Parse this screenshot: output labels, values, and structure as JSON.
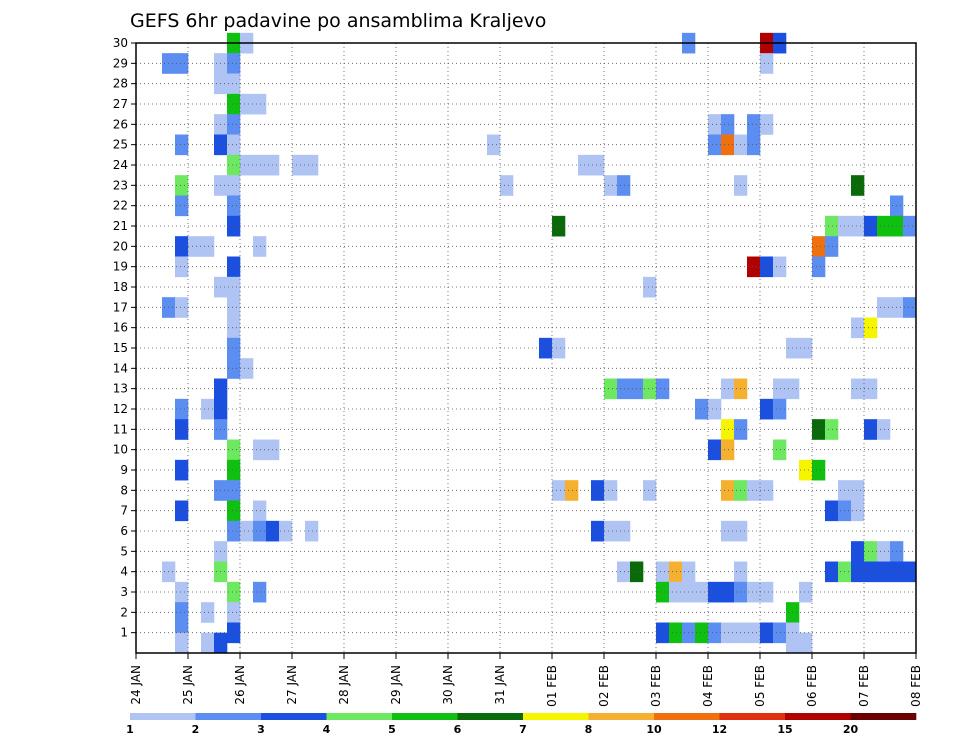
{
  "chart_data": {
    "type": "heatmap",
    "title": "GEFS 6hr padavine po ansamblima Kraljevo",
    "xlabel": "",
    "ylabel": "",
    "x_tick_labels": [
      "24 JAN",
      "25 JAN",
      "26 JAN",
      "27 JAN",
      "28 JAN",
      "29 JAN",
      "30 JAN",
      "31 JAN",
      "01 FEB",
      "02 FEB",
      "03 FEB",
      "04 FEB",
      "05 FEB",
      "06 FEB",
      "07 FEB",
      "08 FEB"
    ],
    "x_unit": "6-hour steps from 24 JAN 00Z (4 steps per day)",
    "x_range": [
      0,
      60
    ],
    "y_tick_labels": [
      1,
      2,
      3,
      4,
      5,
      6,
      7,
      8,
      9,
      10,
      11,
      12,
      13,
      14,
      15,
      16,
      17,
      18,
      19,
      20,
      21,
      22,
      23,
      24,
      25,
      26,
      27,
      28,
      29,
      30
    ],
    "y_range": [
      0,
      30
    ],
    "grid": "dotted",
    "legend": {
      "position": "bottom",
      "thresholds": [
        "1",
        "2",
        "3",
        "4",
        "5",
        "6",
        "7",
        "8",
        "10",
        "12",
        "15",
        "20"
      ],
      "colors": [
        "#b0c4f4",
        "#5c8df0",
        "#1a4fe0",
        "#6ee860",
        "#10c010",
        "#0a6a0a",
        "#f5f500",
        "#f5b030",
        "#f07010",
        "#e03010",
        "#b00000",
        "#6a0000"
      ]
    },
    "level_colors": {
      "1": "#b0c4f4",
      "2": "#5c8df0",
      "3": "#1a4fe0",
      "4": "#6ee860",
      "5": "#10c010",
      "6": "#0a6a0a",
      "7": "#f5f500",
      "8": "#f5b030",
      "10": "#f07010",
      "12": "#e03010",
      "15": "#b00000",
      "20": "#6a0000"
    },
    "cells": [
      [
        "7.0",
        "30",
        4,
        5
      ],
      [
        "7.0",
        "27",
        4,
        5
      ],
      [
        "7.0",
        "24",
        4,
        4
      ],
      [
        "7.0",
        "21",
        4,
        3
      ],
      [
        "7.0",
        "10",
        4,
        4
      ],
      [
        "7.0",
        "9",
        4,
        5
      ],
      [
        "7.0",
        "7",
        4,
        5
      ],
      [
        "7.0",
        "3",
        4,
        4
      ],
      [
        "7.0",
        "1",
        4,
        3
      ]
    ],
    "cells_flat": [
      [
        30,
        7,
        "5"
      ],
      [
        30,
        8,
        "1"
      ],
      [
        30,
        42,
        "2"
      ],
      [
        30,
        48,
        "15"
      ],
      [
        30,
        49,
        "3"
      ],
      [
        29,
        2,
        "2"
      ],
      [
        29,
        3,
        "2"
      ],
      [
        29,
        6,
        "1"
      ],
      [
        29,
        7,
        "2"
      ],
      [
        29,
        48,
        "1"
      ],
      [
        28,
        6,
        "1"
      ],
      [
        28,
        7,
        "1"
      ],
      [
        27,
        7,
        "5"
      ],
      [
        27,
        8,
        "1"
      ],
      [
        27,
        9,
        "1"
      ],
      [
        26,
        6,
        "1"
      ],
      [
        26,
        7,
        "2"
      ],
      [
        26,
        44,
        "1"
      ],
      [
        26,
        45,
        "2"
      ],
      [
        26,
        47,
        "2"
      ],
      [
        26,
        48,
        "1"
      ],
      [
        25,
        3,
        "2"
      ],
      [
        25,
        6,
        "3"
      ],
      [
        25,
        7,
        "1"
      ],
      [
        25,
        27,
        "1"
      ],
      [
        25,
        44,
        "2"
      ],
      [
        25,
        45,
        "10"
      ],
      [
        25,
        46,
        "1"
      ],
      [
        25,
        47,
        "2"
      ],
      [
        24,
        7,
        "4"
      ],
      [
        24,
        8,
        "1"
      ],
      [
        24,
        9,
        "1"
      ],
      [
        24,
        10,
        "1"
      ],
      [
        24,
        12,
        "1"
      ],
      [
        24,
        13,
        "1"
      ],
      [
        24,
        34,
        "1"
      ],
      [
        24,
        35,
        "1"
      ],
      [
        23,
        3,
        "4"
      ],
      [
        23,
        6,
        "1"
      ],
      [
        23,
        7,
        "1"
      ],
      [
        23,
        28,
        "1"
      ],
      [
        23,
        36,
        "1"
      ],
      [
        23,
        37,
        "2"
      ],
      [
        23,
        46,
        "1"
      ],
      [
        23,
        55,
        "6"
      ],
      [
        22,
        3,
        "2"
      ],
      [
        22,
        7,
        "2"
      ],
      [
        22,
        58,
        "2"
      ],
      [
        21,
        7,
        "3"
      ],
      [
        21,
        32,
        "6"
      ],
      [
        21,
        53,
        "4"
      ],
      [
        21,
        54,
        "1"
      ],
      [
        21,
        55,
        "1"
      ],
      [
        21,
        56,
        "3"
      ],
      [
        21,
        57,
        "5"
      ],
      [
        21,
        58,
        "5"
      ],
      [
        21,
        59,
        "2"
      ],
      [
        20,
        3,
        "3"
      ],
      [
        20,
        4,
        "1"
      ],
      [
        20,
        5,
        "1"
      ],
      [
        20,
        9,
        "1"
      ],
      [
        20,
        52,
        "10"
      ],
      [
        20,
        53,
        "2"
      ],
      [
        19,
        3,
        "1"
      ],
      [
        19,
        7,
        "3"
      ],
      [
        19,
        47,
        "15"
      ],
      [
        19,
        48,
        "3"
      ],
      [
        19,
        49,
        "1"
      ],
      [
        19,
        52,
        "2"
      ],
      [
        18,
        6,
        "1"
      ],
      [
        18,
        7,
        "1"
      ],
      [
        18,
        39,
        "1"
      ],
      [
        17,
        2,
        "2"
      ],
      [
        17,
        3,
        "1"
      ],
      [
        17,
        7,
        "1"
      ],
      [
        17,
        57,
        "1"
      ],
      [
        17,
        58,
        "1"
      ],
      [
        17,
        59,
        "2"
      ],
      [
        16,
        7,
        "1"
      ],
      [
        16,
        55,
        "1"
      ],
      [
        16,
        56,
        "7"
      ],
      [
        15,
        7,
        "2"
      ],
      [
        15,
        31,
        "3"
      ],
      [
        15,
        32,
        "1"
      ],
      [
        15,
        50,
        "1"
      ],
      [
        15,
        51,
        "1"
      ],
      [
        14,
        7,
        "2"
      ],
      [
        14,
        8,
        "1"
      ],
      [
        13,
        6,
        "3"
      ],
      [
        13,
        36,
        "4"
      ],
      [
        13,
        37,
        "2"
      ],
      [
        13,
        38,
        "2"
      ],
      [
        13,
        39,
        "4"
      ],
      [
        13,
        40,
        "2"
      ],
      [
        13,
        45,
        "1"
      ],
      [
        13,
        46,
        "8"
      ],
      [
        13,
        49,
        "1"
      ],
      [
        13,
        50,
        "1"
      ],
      [
        13,
        55,
        "1"
      ],
      [
        13,
        56,
        "1"
      ],
      [
        12,
        3,
        "2"
      ],
      [
        12,
        5,
        "1"
      ],
      [
        12,
        6,
        "3"
      ],
      [
        12,
        43,
        "2"
      ],
      [
        12,
        44,
        "1"
      ],
      [
        12,
        48,
        "3"
      ],
      [
        12,
        49,
        "2"
      ],
      [
        11,
        3,
        "3"
      ],
      [
        11,
        6,
        "2"
      ],
      [
        11,
        45,
        "7"
      ],
      [
        11,
        46,
        "2"
      ],
      [
        11,
        52,
        "6"
      ],
      [
        11,
        53,
        "4"
      ],
      [
        11,
        56,
        "3"
      ],
      [
        11,
        57,
        "1"
      ],
      [
        10,
        7,
        "4"
      ],
      [
        10,
        9,
        "1"
      ],
      [
        10,
        10,
        "1"
      ],
      [
        10,
        44,
        "3"
      ],
      [
        10,
        45,
        "8"
      ],
      [
        10,
        49,
        "4"
      ],
      [
        9,
        3,
        "3"
      ],
      [
        9,
        7,
        "5"
      ],
      [
        9,
        51,
        "7"
      ],
      [
        9,
        52,
        "5"
      ],
      [
        8,
        6,
        "2"
      ],
      [
        8,
        7,
        "2"
      ],
      [
        8,
        32,
        "1"
      ],
      [
        8,
        33,
        "8"
      ],
      [
        8,
        35,
        "3"
      ],
      [
        8,
        36,
        "1"
      ],
      [
        8,
        39,
        "1"
      ],
      [
        8,
        45,
        "8"
      ],
      [
        8,
        46,
        "4"
      ],
      [
        8,
        47,
        "1"
      ],
      [
        8,
        48,
        "1"
      ],
      [
        8,
        54,
        "1"
      ],
      [
        8,
        55,
        "1"
      ],
      [
        7,
        3,
        "3"
      ],
      [
        7,
        7,
        "5"
      ],
      [
        7,
        9,
        "1"
      ],
      [
        7,
        53,
        "3"
      ],
      [
        7,
        54,
        "2"
      ],
      [
        7,
        55,
        "1"
      ],
      [
        6,
        7,
        "2"
      ],
      [
        6,
        8,
        "1"
      ],
      [
        6,
        9,
        "2"
      ],
      [
        6,
        10,
        "3"
      ],
      [
        6,
        11,
        "1"
      ],
      [
        6,
        13,
        "1"
      ],
      [
        6,
        35,
        "3"
      ],
      [
        6,
        36,
        "1"
      ],
      [
        6,
        37,
        "1"
      ],
      [
        6,
        45,
        "1"
      ],
      [
        6,
        46,
        "1"
      ],
      [
        5,
        6,
        "1"
      ],
      [
        5,
        55,
        "3"
      ],
      [
        5,
        56,
        "4"
      ],
      [
        5,
        57,
        "1"
      ],
      [
        5,
        58,
        "2"
      ],
      [
        4,
        2,
        "1"
      ],
      [
        4,
        6,
        "4"
      ],
      [
        4,
        37,
        "1"
      ],
      [
        4,
        38,
        "6"
      ],
      [
        4,
        40,
        "1"
      ],
      [
        4,
        41,
        "8"
      ],
      [
        4,
        42,
        "1"
      ],
      [
        4,
        46,
        "1"
      ],
      [
        4,
        53,
        "3"
      ],
      [
        4,
        54,
        "4"
      ],
      [
        4,
        55,
        "3"
      ],
      [
        4,
        56,
        "3"
      ],
      [
        4,
        57,
        "3"
      ],
      [
        4,
        58,
        "3"
      ],
      [
        4,
        59,
        "3"
      ],
      [
        3,
        3,
        "1"
      ],
      [
        3,
        7,
        "4"
      ],
      [
        3,
        9,
        "2"
      ],
      [
        3,
        40,
        "5"
      ],
      [
        3,
        41,
        "1"
      ],
      [
        3,
        42,
        "1"
      ],
      [
        3,
        43,
        "1"
      ],
      [
        3,
        44,
        "3"
      ],
      [
        3,
        45,
        "3"
      ],
      [
        3,
        46,
        "2"
      ],
      [
        3,
        47,
        "1"
      ],
      [
        3,
        48,
        "1"
      ],
      [
        3,
        51,
        "1"
      ],
      [
        2,
        3,
        "2"
      ],
      [
        2,
        5,
        "1"
      ],
      [
        2,
        7,
        "1"
      ],
      [
        2,
        50,
        "5"
      ],
      [
        1,
        3,
        "2"
      ],
      [
        1,
        7,
        "3"
      ],
      [
        1,
        40,
        "3"
      ],
      [
        1,
        41,
        "5"
      ],
      [
        1,
        42,
        "2"
      ],
      [
        1,
        43,
        "5"
      ],
      [
        1,
        44,
        "2"
      ],
      [
        1,
        45,
        "1"
      ],
      [
        1,
        46,
        "1"
      ],
      [
        1,
        47,
        "1"
      ],
      [
        1,
        48,
        "3"
      ],
      [
        1,
        49,
        "2"
      ],
      [
        1,
        50,
        "1"
      ],
      [
        0.5,
        3,
        "1"
      ],
      [
        0.5,
        5,
        "1"
      ],
      [
        0.5,
        6,
        "3"
      ],
      [
        0.5,
        50,
        "1"
      ],
      [
        0.5,
        51,
        "1"
      ]
    ]
  }
}
